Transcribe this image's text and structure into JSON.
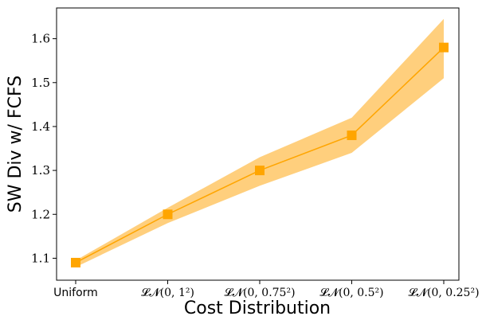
{
  "chart_data": {
    "type": "line",
    "title": "",
    "xlabel": "Cost Distribution",
    "ylabel": "SW Div w/ FCFS",
    "categories": [
      "Uniform",
      "𝓛𝓝(0, 1²)",
      "𝓛𝓝(0, 0.75²)",
      "𝓛𝓝(0, 0.5²)",
      "𝓛𝓝(0, 0.25²)"
    ],
    "ylim": [
      1.05,
      1.67
    ],
    "yticks": [
      "1.1",
      "1.2",
      "1.3",
      "1.4",
      "1.5",
      "1.6"
    ],
    "grid": false,
    "series": [
      {
        "values": [
          1.09,
          1.2,
          1.3,
          1.38,
          1.58
        ],
        "lower": [
          1.08,
          1.18,
          1.265,
          1.34,
          1.51
        ],
        "upper": [
          1.095,
          1.215,
          1.33,
          1.42,
          1.645
        ],
        "color": "#FFA500",
        "band_color": "#FFC766",
        "marker": "square"
      }
    ]
  }
}
